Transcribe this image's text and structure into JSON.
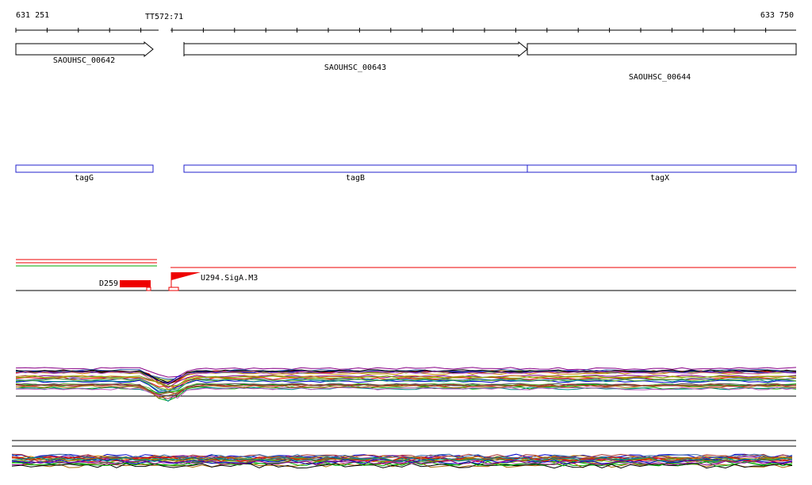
{
  "ruler": {
    "start": "631 251",
    "marker": "TT572:71",
    "end": "633 750"
  },
  "genes": [
    {
      "label": "SAOUHSC_00642"
    },
    {
      "label": "SAOUHSC_00643"
    },
    {
      "label": "SAOUHSC_00644"
    }
  ],
  "names": [
    {
      "label": "tagG"
    },
    {
      "label": "tagB"
    },
    {
      "label": "tagX"
    }
  ],
  "features": [
    {
      "label": "D259"
    },
    {
      "label": "U294.SigA.M3"
    }
  ]
}
